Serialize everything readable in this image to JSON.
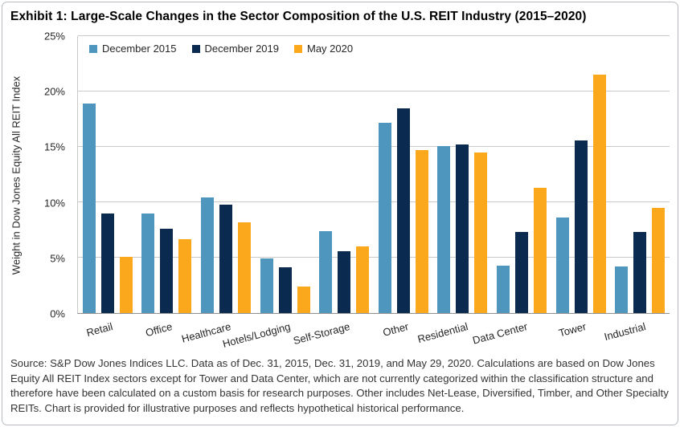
{
  "exhibit": {
    "title": "Exhibit 1: Large-Scale Changes in the Sector Composition of the U.S. REIT Industry (2015–2020)",
    "source_note": "Source: S&P Dow Jones Indices LLC. Data as of Dec. 31, 2015, Dec. 31, 2019, and May 29, 2020. Calculations are based on Dow Jones Equity All REIT Index sectors except for Tower and Data Center, which are not currently categorized within the classification structure and therefore have been calculated on a custom basis for research purposes. Other includes Net-Lease, Diversified, Timber, and Other Specialty REITs. Chart is provided for illustrative purposes and reflects hypothetical historical performance."
  },
  "chart_data": {
    "type": "bar",
    "title": "Exhibit 1: Large-Scale Changes in the Sector Composition of the U.S. REIT Industry (2015–2020)",
    "xlabel": "",
    "ylabel": "Weight in Dow Jones Equity All REIT Index",
    "ylim": [
      0,
      25
    ],
    "ytick_step": 5,
    "ytick_labels": [
      "0%",
      "5%",
      "10%",
      "15%",
      "20%",
      "25%"
    ],
    "grid": true,
    "legend_position": "top-left-inside",
    "categories": [
      "Retail",
      "Office",
      "Healthcare",
      "Hotels/Lodging",
      "Self-Storage",
      "Other",
      "Residential",
      "Data Center",
      "Tower",
      "Industrial"
    ],
    "series": [
      {
        "name": "December 2015",
        "color": "#4e96be",
        "values": [
          18.9,
          9.0,
          10.4,
          4.9,
          7.4,
          17.2,
          15.1,
          4.3,
          8.6,
          4.2
        ]
      },
      {
        "name": "December 2019",
        "color": "#0b2a4f",
        "values": [
          9.0,
          7.6,
          9.8,
          4.1,
          5.6,
          18.5,
          15.2,
          7.3,
          15.6,
          7.3
        ]
      },
      {
        "name": "May 2020",
        "color": "#fca81d",
        "values": [
          5.1,
          6.7,
          8.2,
          2.4,
          6.0,
          14.7,
          14.5,
          11.3,
          21.5,
          9.5
        ]
      }
    ],
    "colors": {
      "gridline": "#c9c9c9",
      "axis_line": "#8f8f8f",
      "text": "#262626"
    }
  }
}
